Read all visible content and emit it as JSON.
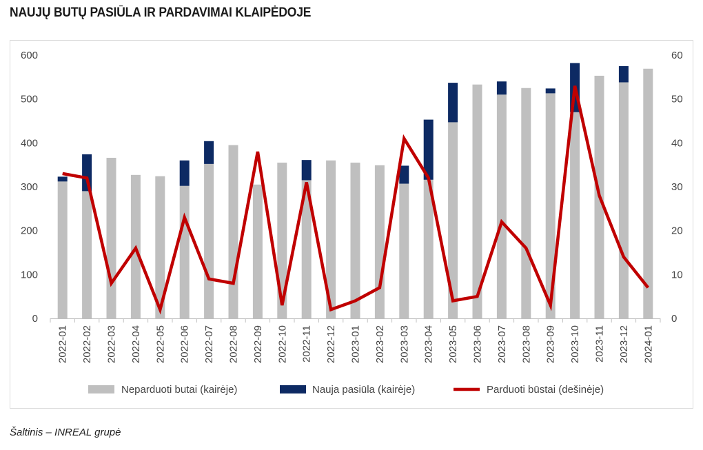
{
  "title": "NAUJŲ BUTŲ PASIŪLA IR PARDAVIMAI KLAIPĖDOJE",
  "source": "Šaltinis – INREAL grupė",
  "colors": {
    "unsold": "#bfbfbf",
    "new_supply": "#0d2a63",
    "sold": "#c00000"
  },
  "chart_data": {
    "type": "bar",
    "stacked": true,
    "categories": [
      "2022-01",
      "2022-02",
      "2022-03",
      "2022-04",
      "2022-05",
      "2022-06",
      "2022-07",
      "2022-08",
      "2022-09",
      "2022-10",
      "2022-11",
      "2022-12",
      "2023-01",
      "2023-02",
      "2023-03",
      "2023-04",
      "2023-05",
      "2023-06",
      "2023-07",
      "2023-08",
      "2023-09",
      "2023-10",
      "2023-11",
      "2023-12",
      "2024-01"
    ],
    "y_left": {
      "min": 0,
      "max": 600,
      "ticks": [
        "0",
        "100",
        "200",
        "300",
        "400",
        "500",
        "600"
      ]
    },
    "y_right": {
      "min": 0,
      "max": 60,
      "ticks": [
        "0",
        "10",
        "20",
        "30",
        "40",
        "50",
        "60"
      ]
    },
    "series": [
      {
        "name": "Neparduoti butai (kairėje)",
        "kind": "bar",
        "axis": "left",
        "values": [
          312,
          290,
          366,
          327,
          324,
          302,
          352,
          395,
          305,
          355,
          315,
          360,
          355,
          349,
          307,
          316,
          447,
          533,
          510,
          525,
          513,
          470,
          553,
          538,
          569
        ]
      },
      {
        "name": "Nauja pasiūla (kairėje)",
        "kind": "bar",
        "axis": "left",
        "values": [
          11,
          84,
          0,
          0,
          0,
          58,
          52,
          0,
          0,
          0,
          46,
          0,
          0,
          0,
          41,
          137,
          90,
          0,
          30,
          0,
          11,
          112,
          0,
          37,
          0
        ]
      },
      {
        "name": "Parduoti būstai (dešinėje)",
        "kind": "line",
        "axis": "right",
        "values": [
          33,
          32,
          8,
          16,
          2,
          23,
          9,
          8,
          38,
          3,
          31,
          2,
          4,
          7,
          41,
          32,
          4,
          5,
          22,
          16,
          3,
          53,
          28,
          14,
          7
        ]
      }
    ],
    "legend_position": "bottom",
    "grid": false
  }
}
